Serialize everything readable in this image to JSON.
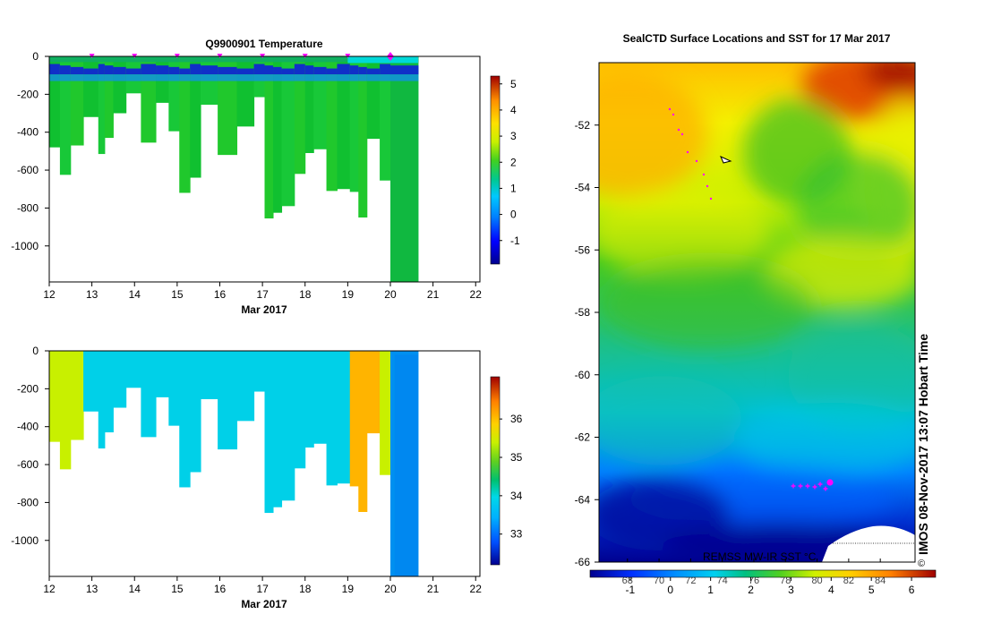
{
  "chart_data": [
    {
      "type": "heatmap",
      "title": "Q9900901  Temperature",
      "xlabel": "Mar 2017",
      "ylabel": "",
      "x_ticks": [
        12,
        13,
        14,
        15,
        16,
        17,
        18,
        19,
        20,
        21,
        22
      ],
      "y_ticks": [
        0,
        -200,
        -400,
        -600,
        -800,
        -1000
      ],
      "xlim": [
        12,
        22.1
      ],
      "ylim": [
        -1190,
        0
      ],
      "colorbar": {
        "ticks": [
          -1,
          0,
          1,
          2,
          3,
          4,
          5
        ],
        "range": [
          -1.9,
          5.3
        ]
      },
      "surface_markers": [
        13,
        14,
        15,
        16,
        17,
        18,
        19
      ],
      "last_marker": 20,
      "profiles": [
        {
          "x0": 12.0,
          "x1": 12.25,
          "depth": -480
        },
        {
          "x0": 12.25,
          "x1": 12.5,
          "depth": -625
        },
        {
          "x0": 12.5,
          "x1": 12.8,
          "depth": -470
        },
        {
          "x0": 12.8,
          "x1": 13.15,
          "depth": -320
        },
        {
          "x0": 13.15,
          "x1": 13.3,
          "depth": -515
        },
        {
          "x0": 13.3,
          "x1": 13.5,
          "depth": -430
        },
        {
          "x0": 13.5,
          "x1": 13.8,
          "depth": -300
        },
        {
          "x0": 13.8,
          "x1": 14.15,
          "depth": -195
        },
        {
          "x0": 14.15,
          "x1": 14.5,
          "depth": -455
        },
        {
          "x0": 14.5,
          "x1": 14.8,
          "depth": -245
        },
        {
          "x0": 14.8,
          "x1": 15.05,
          "depth": -395
        },
        {
          "x0": 15.05,
          "x1": 15.3,
          "depth": -720
        },
        {
          "x0": 15.3,
          "x1": 15.55,
          "depth": -640
        },
        {
          "x0": 15.55,
          "x1": 15.95,
          "depth": -255
        },
        {
          "x0": 15.95,
          "x1": 16.4,
          "depth": -520
        },
        {
          "x0": 16.4,
          "x1": 16.8,
          "depth": -370
        },
        {
          "x0": 16.8,
          "x1": 17.05,
          "depth": -215
        },
        {
          "x0": 17.05,
          "x1": 17.25,
          "depth": -855
        },
        {
          "x0": 17.25,
          "x1": 17.45,
          "depth": -825
        },
        {
          "x0": 17.45,
          "x1": 17.75,
          "depth": -790
        },
        {
          "x0": 17.75,
          "x1": 18.0,
          "depth": -620
        },
        {
          "x0": 18.0,
          "x1": 18.2,
          "depth": -510
        },
        {
          "x0": 18.2,
          "x1": 18.5,
          "depth": -490
        },
        {
          "x0": 18.5,
          "x1": 18.75,
          "depth": -710
        },
        {
          "x0": 18.75,
          "x1": 19.05,
          "depth": -700
        },
        {
          "x0": 19.05,
          "x1": 19.25,
          "depth": -715
        },
        {
          "x0": 19.25,
          "x1": 19.45,
          "depth": -850
        },
        {
          "x0": 19.45,
          "x1": 19.75,
          "depth": -435
        },
        {
          "x0": 19.75,
          "x1": 20.0,
          "depth": -655
        },
        {
          "x0": 20.0,
          "x1": 20.65,
          "depth": -1190
        }
      ]
    },
    {
      "type": "heatmap",
      "title": "",
      "xlabel": "Mar 2017",
      "ylabel": "",
      "x_ticks": [
        12,
        13,
        14,
        15,
        16,
        17,
        18,
        19,
        20,
        21,
        22
      ],
      "y_ticks": [
        0,
        -200,
        -400,
        -600,
        -800,
        -1000
      ],
      "xlim": [
        12,
        22.1
      ],
      "ylim": [
        -1190,
        0
      ],
      "colorbar": {
        "ticks": [
          33,
          34,
          35,
          36
        ],
        "range": [
          32.2,
          37.1
        ]
      },
      "profiles": [
        {
          "x0": 12.0,
          "x1": 12.25,
          "depth": -480,
          "value": 35.0
        },
        {
          "x0": 12.25,
          "x1": 12.5,
          "depth": -625,
          "value": 35.0
        },
        {
          "x0": 12.5,
          "x1": 12.8,
          "depth": -470,
          "value": 35.0
        },
        {
          "x0": 12.8,
          "x1": 13.15,
          "depth": -320,
          "value": 33.55
        },
        {
          "x0": 13.15,
          "x1": 13.3,
          "depth": -515,
          "value": 33.55
        },
        {
          "x0": 13.3,
          "x1": 13.5,
          "depth": -430,
          "value": 33.55
        },
        {
          "x0": 13.5,
          "x1": 13.8,
          "depth": -300,
          "value": 33.55
        },
        {
          "x0": 13.8,
          "x1": 14.15,
          "depth": -195,
          "value": 33.55
        },
        {
          "x0": 14.15,
          "x1": 14.5,
          "depth": -455,
          "value": 33.55
        },
        {
          "x0": 14.5,
          "x1": 14.8,
          "depth": -245,
          "value": 33.55
        },
        {
          "x0": 14.8,
          "x1": 15.05,
          "depth": -395,
          "value": 33.55
        },
        {
          "x0": 15.05,
          "x1": 15.3,
          "depth": -720,
          "value": 33.55
        },
        {
          "x0": 15.3,
          "x1": 15.55,
          "depth": -640,
          "value": 33.55
        },
        {
          "x0": 15.55,
          "x1": 15.95,
          "depth": -255,
          "value": 33.55
        },
        {
          "x0": 15.95,
          "x1": 16.4,
          "depth": -520,
          "value": 33.55
        },
        {
          "x0": 16.4,
          "x1": 16.8,
          "depth": -370,
          "value": 33.55
        },
        {
          "x0": 16.8,
          "x1": 17.05,
          "depth": -215,
          "value": 33.55
        },
        {
          "x0": 17.05,
          "x1": 17.25,
          "depth": -855,
          "value": 33.55
        },
        {
          "x0": 17.25,
          "x1": 17.45,
          "depth": -825,
          "value": 33.55
        },
        {
          "x0": 17.45,
          "x1": 17.75,
          "depth": -790,
          "value": 33.55
        },
        {
          "x0": 17.75,
          "x1": 18.0,
          "depth": -620,
          "value": 33.55
        },
        {
          "x0": 18.0,
          "x1": 18.2,
          "depth": -510,
          "value": 33.55
        },
        {
          "x0": 18.2,
          "x1": 18.5,
          "depth": -490,
          "value": 33.55
        },
        {
          "x0": 18.5,
          "x1": 18.75,
          "depth": -710,
          "value": 33.55
        },
        {
          "x0": 18.75,
          "x1": 19.05,
          "depth": -700,
          "value": 33.55
        },
        {
          "x0": 19.05,
          "x1": 19.25,
          "depth": -715,
          "value": 35.6
        },
        {
          "x0": 19.25,
          "x1": 19.45,
          "depth": -850,
          "value": 35.6
        },
        {
          "x0": 19.45,
          "x1": 19.75,
          "depth": -435,
          "value": 35.6
        },
        {
          "x0": 19.75,
          "x1": 20.0,
          "depth": -655,
          "value": 35.0
        },
        {
          "x0": 20.0,
          "x1": 20.65,
          "depth": -1190,
          "value": 33.1
        }
      ]
    },
    {
      "type": "heatmap",
      "title": "SealCTD Surface Locations and SST for 17 Mar 2017",
      "y_ticks": [
        -52,
        -54,
        -56,
        -58,
        -60,
        -62,
        -64,
        -66
      ],
      "ylim": [
        -66,
        -50.0
      ],
      "x_ticks": [
        68,
        70,
        72,
        74,
        76,
        78,
        80,
        82,
        84
      ],
      "x_tick_labels": [
        "68",
        "70",
        "72",
        "74",
        "76",
        "78",
        "80",
        "82",
        "84"
      ],
      "xlim": [
        66.2,
        86.2
      ],
      "colorbar": {
        "ticks": [
          -1,
          0,
          1,
          2,
          3,
          4,
          5,
          6
        ],
        "range": [
          -2.0,
          6.6
        ]
      },
      "colorbar_label": "REMSS MW-IR SST °C",
      "stamp": "IMOS 08-Nov-2017 13:07 Hobart Time",
      "copyright": "©"
    }
  ]
}
